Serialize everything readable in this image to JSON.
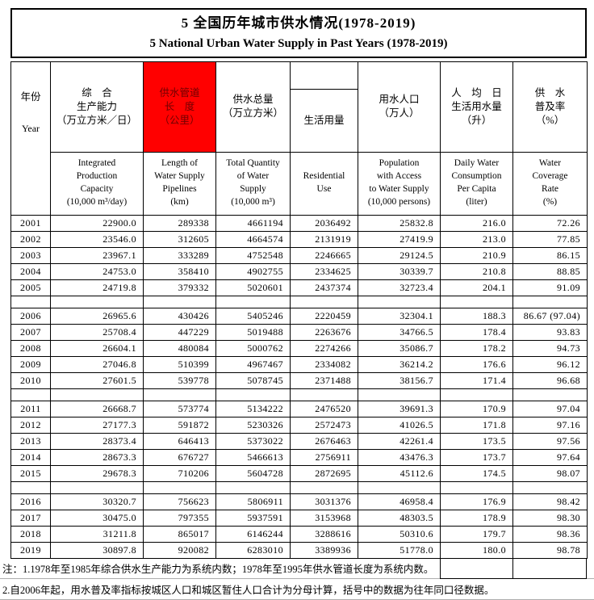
{
  "title": {
    "zh": "5 全国历年城市供水情况(1978-2019)",
    "en": "5 National Urban Water Supply in Past Years (1978-2019)"
  },
  "header": {
    "year": {
      "zh": "年份",
      "en": "Year"
    },
    "cols": [
      {
        "zh": "综　合\n生产能力\n（万立方米／日）",
        "en": "Integrated\nProduction\nCapacity\n(10,000 m³/day)"
      },
      {
        "zh": "供水管道\n长　度\n（公里）",
        "en": "Length of\nWater Supply\nPipelines\n(km)"
      },
      {
        "zh": "供水总量\n（万立方米）",
        "en": "Total Quantity\nof Water\nSupply\n(10,000 m³)"
      },
      {
        "zh": "生活用量",
        "en": "Residential\nUse"
      },
      {
        "zh": "用水人口\n（万人）",
        "en": "Population\nwith Access\nto Water Supply\n(10,000 persons)"
      },
      {
        "zh": "人　均　日\n生活用水量\n（升）",
        "en": "Daily Water\nConsumption\nPer Capita\n(liter)"
      },
      {
        "zh": "供　水\n普及率\n（%）",
        "en": "Water\nCoverage\nRate\n(%)"
      }
    ]
  },
  "rows": [
    {
      "year": "2001",
      "values": [
        "22900.0",
        "289338",
        "4661194",
        "2036492",
        "25832.8",
        "216.0",
        "72.26"
      ]
    },
    {
      "year": "2002",
      "values": [
        "23546.0",
        "312605",
        "4664574",
        "2131919",
        "27419.9",
        "213.0",
        "77.85"
      ]
    },
    {
      "year": "2003",
      "values": [
        "23967.1",
        "333289",
        "4752548",
        "2246665",
        "29124.5",
        "210.9",
        "86.15"
      ]
    },
    {
      "year": "2004",
      "values": [
        "24753.0",
        "358410",
        "4902755",
        "2334625",
        "30339.7",
        "210.8",
        "88.85"
      ]
    },
    {
      "year": "2005",
      "values": [
        "24719.8",
        "379332",
        "5020601",
        "2437374",
        "32723.4",
        "204.1",
        "91.09"
      ]
    },
    {
      "year": "2006",
      "values": [
        "26965.6",
        "430426",
        "5405246",
        "2220459",
        "32304.1",
        "188.3",
        "86.67 (97.04)"
      ]
    },
    {
      "year": "2007",
      "values": [
        "25708.4",
        "447229",
        "5019488",
        "2263676",
        "34766.5",
        "178.4",
        "93.83"
      ]
    },
    {
      "year": "2008",
      "values": [
        "26604.1",
        "480084",
        "5000762",
        "2274266",
        "35086.7",
        "178.2",
        "94.73"
      ]
    },
    {
      "year": "2009",
      "values": [
        "27046.8",
        "510399",
        "4967467",
        "2334082",
        "36214.2",
        "176.6",
        "96.12"
      ]
    },
    {
      "year": "2010",
      "values": [
        "27601.5",
        "539778",
        "5078745",
        "2371488",
        "38156.7",
        "171.4",
        "96.68"
      ]
    },
    {
      "year": "2011",
      "values": [
        "26668.7",
        "573774",
        "5134222",
        "2476520",
        "39691.3",
        "170.9",
        "97.04"
      ]
    },
    {
      "year": "2012",
      "values": [
        "27177.3",
        "591872",
        "5230326",
        "2572473",
        "41026.5",
        "171.8",
        "97.16"
      ]
    },
    {
      "year": "2013",
      "values": [
        "28373.4",
        "646413",
        "5373022",
        "2676463",
        "42261.4",
        "173.5",
        "97.56"
      ]
    },
    {
      "year": "2014",
      "values": [
        "28673.3",
        "676727",
        "5466613",
        "2756911",
        "43476.3",
        "173.7",
        "97.64"
      ]
    },
    {
      "year": "2015",
      "values": [
        "29678.3",
        "710206",
        "5604728",
        "2872695",
        "45112.6",
        "174.5",
        "98.07"
      ]
    },
    {
      "year": "2016",
      "values": [
        "30320.7",
        "756623",
        "5806911",
        "3031376",
        "46958.4",
        "176.9",
        "98.42"
      ]
    },
    {
      "year": "2017",
      "values": [
        "30475.0",
        "797355",
        "5937591",
        "3153968",
        "48303.5",
        "178.9",
        "98.30"
      ]
    },
    {
      "year": "2018",
      "values": [
        "31211.8",
        "865017",
        "6146244",
        "3288616",
        "50310.6",
        "179.7",
        "98.36"
      ]
    },
    {
      "year": "2019",
      "values": [
        "30897.8",
        "920082",
        "6283010",
        "3389936",
        "51778.0",
        "180.0",
        "98.78"
      ]
    }
  ],
  "spacer_after_years": [
    "2005",
    "2010",
    "2015"
  ],
  "notes": [
    "注：1.1978年至1985年综合供水生产能力为系统内数；1978年至1995年供水管道长度为系统内数。",
    "2.自2006年起，用水普及率指标按城区人口和城区暂住人口合计为分母计算，括号中的数据为往年同口径数据。"
  ],
  "colors": {
    "highlight_bg": "#ff0000",
    "highlight_text": "#700000",
    "grid_line": "#000000",
    "note_divider": "#adadad"
  }
}
